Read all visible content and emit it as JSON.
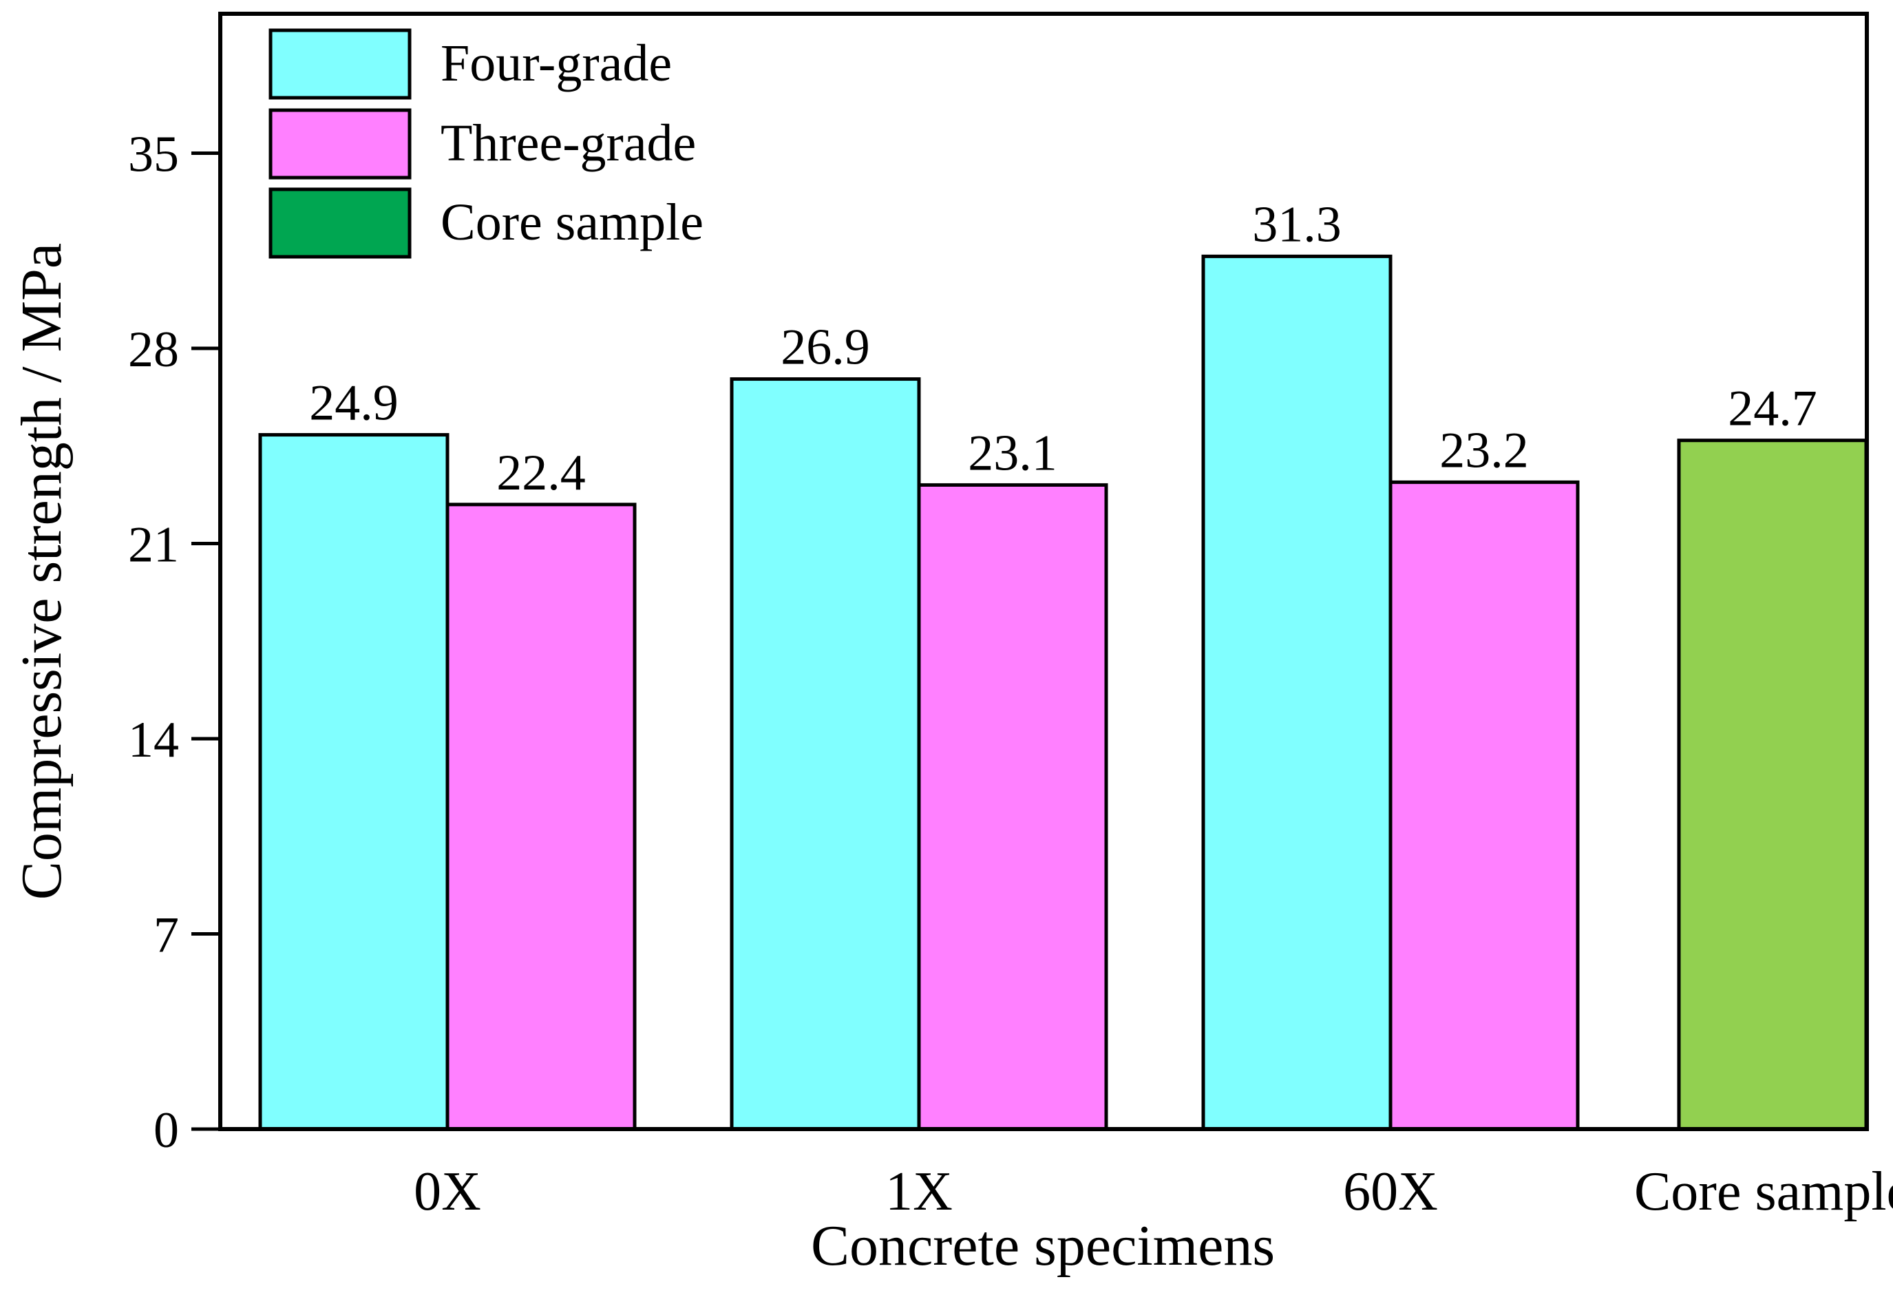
{
  "chart_data": {
    "type": "bar",
    "title": "",
    "xlabel": "Concrete specimens",
    "ylabel": "Compressive strength / MPa",
    "ylim": [
      0,
      40
    ],
    "yticks": [
      0,
      7,
      14,
      21,
      28,
      35
    ],
    "ytick_labels": [
      "0",
      "7",
      "14",
      "21",
      "28",
      "35"
    ],
    "grid": false,
    "legend_position": "top-left",
    "categories": [
      "0X",
      "1X",
      "60X",
      "Core sample"
    ],
    "series": [
      {
        "name": "Four-grade",
        "color": "#80FFFF",
        "values": [
          24.9,
          26.9,
          31.3,
          null
        ],
        "labels": [
          "24.9",
          "26.9",
          "31.3",
          ""
        ]
      },
      {
        "name": "Three-grade",
        "color": "#FF80FF",
        "values": [
          22.4,
          23.1,
          23.2,
          null
        ],
        "labels": [
          "22.4",
          "23.1",
          "23.2",
          ""
        ]
      },
      {
        "name": "Core sample",
        "color": "#00A651",
        "bar_color": "#92D050",
        "values": [
          null,
          null,
          null,
          24.7
        ],
        "labels": [
          "",
          "",
          "",
          "24.7"
        ]
      }
    ]
  }
}
